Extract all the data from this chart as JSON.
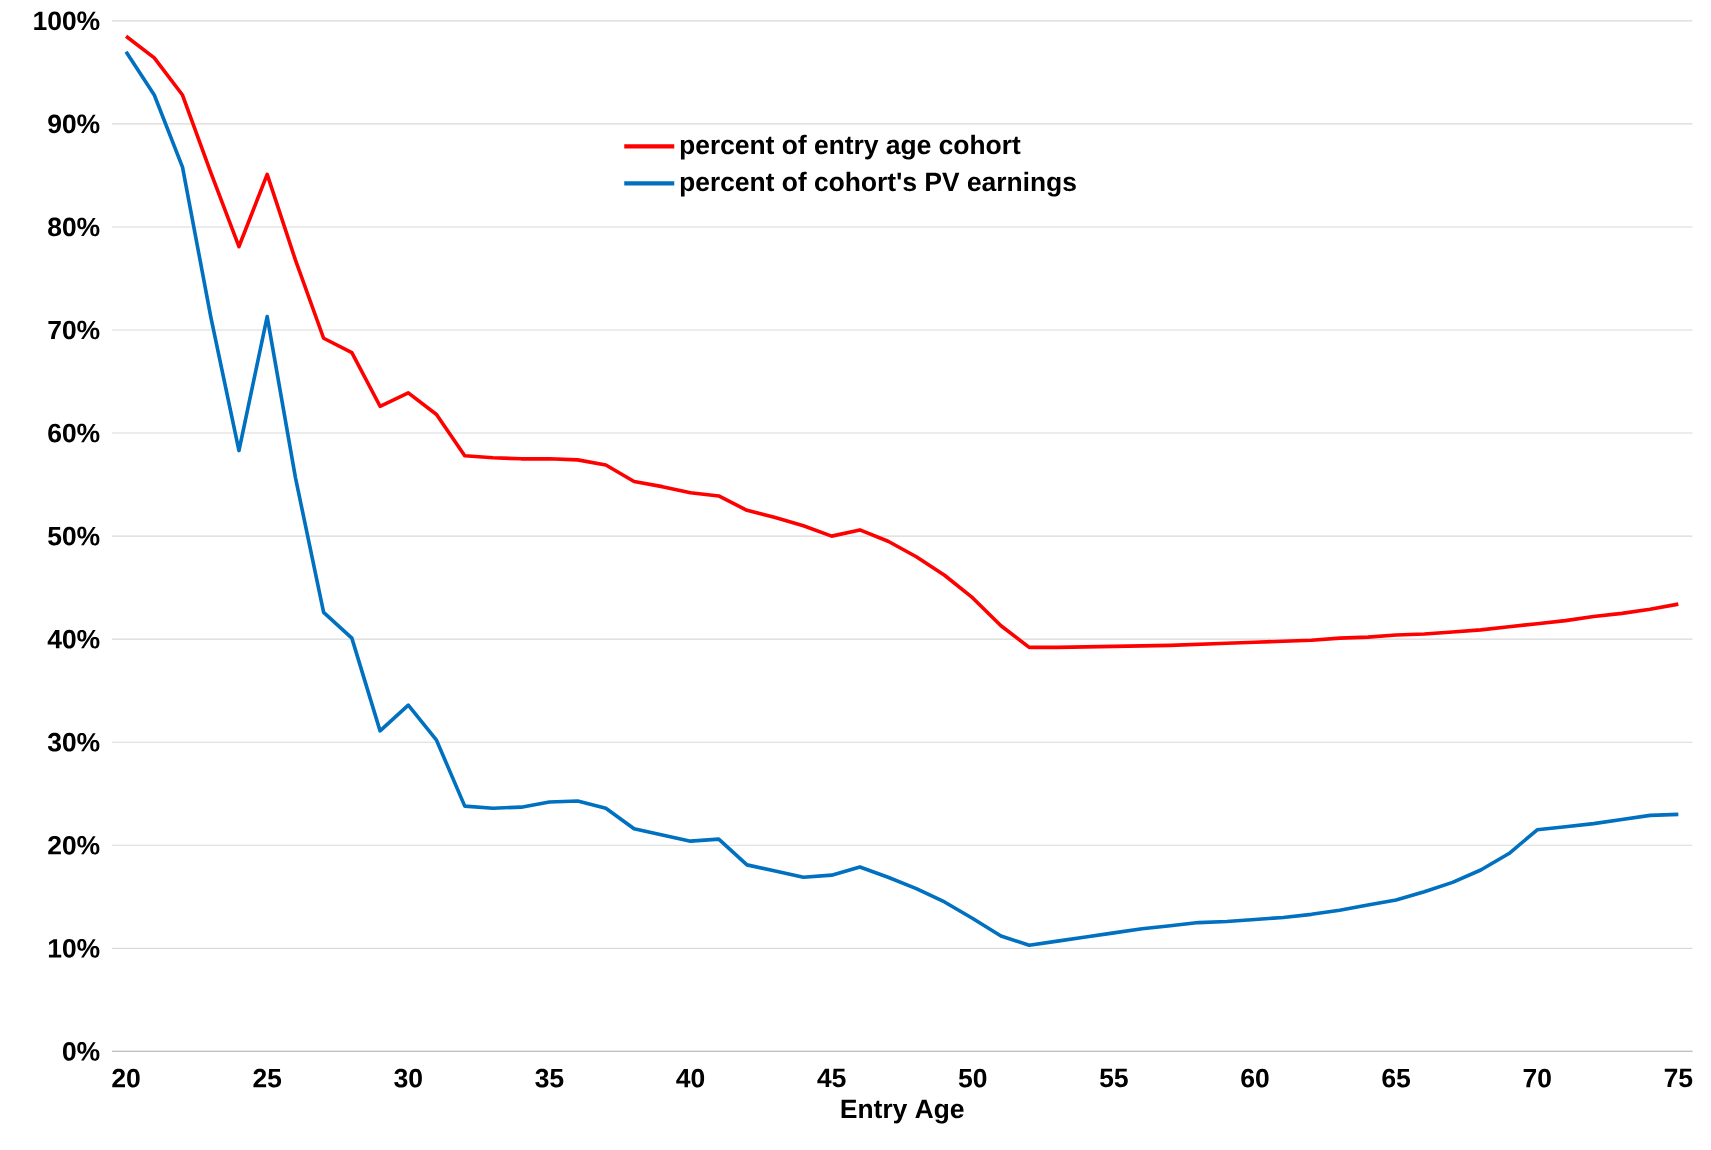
{
  "chart_data": {
    "type": "line",
    "xlabel": "Entry Age",
    "x": [
      20,
      21,
      22,
      23,
      24,
      25,
      26,
      27,
      28,
      29,
      30,
      31,
      32,
      33,
      34,
      35,
      36,
      37,
      38,
      39,
      40,
      41,
      42,
      43,
      44,
      45,
      46,
      47,
      48,
      49,
      50,
      51,
      52,
      53,
      54,
      55,
      56,
      57,
      58,
      59,
      60,
      61,
      62,
      63,
      64,
      65,
      66,
      67,
      68,
      69,
      70,
      71,
      72,
      73,
      74,
      75
    ],
    "series": [
      {
        "name": "percent of entry age cohort",
        "color": "#ff0000",
        "values": [
          98.5,
          96.4,
          92.8,
          85.3,
          78.1,
          85.1,
          76.8,
          69.2,
          67.8,
          62.6,
          63.9,
          61.8,
          57.8,
          57.6,
          57.5,
          57.5,
          57.4,
          56.9,
          55.3,
          54.8,
          54.2,
          53.9,
          52.5,
          51.8,
          51.0,
          50.0,
          50.6,
          49.5,
          48.0,
          46.2,
          44.0,
          41.3,
          39.2,
          39.2,
          39.25,
          39.3,
          39.35,
          39.4,
          39.5,
          39.6,
          39.7,
          39.8,
          39.9,
          40.1,
          40.2,
          40.4,
          40.5,
          40.7,
          40.9,
          41.2,
          41.5,
          41.8,
          42.2,
          42.5,
          42.9,
          43.4
        ]
      },
      {
        "name": "percent of cohort's PV earnings",
        "color": "#0070c0",
        "values": [
          97.0,
          92.8,
          85.8,
          71.3,
          58.3,
          71.3,
          55.7,
          42.6,
          40.1,
          31.1,
          33.6,
          30.2,
          23.8,
          23.6,
          23.7,
          24.2,
          24.3,
          23.6,
          21.6,
          21.0,
          20.4,
          20.6,
          18.1,
          17.5,
          16.9,
          17.1,
          17.9,
          16.9,
          15.8,
          14.5,
          12.9,
          11.2,
          10.3,
          10.7,
          11.1,
          11.5,
          11.9,
          12.2,
          12.5,
          12.6,
          12.8,
          13.0,
          13.3,
          13.7,
          14.2,
          14.7,
          15.5,
          16.4,
          17.6,
          19.2,
          21.5,
          21.8,
          22.1,
          22.5,
          22.9,
          23.0
        ]
      }
    ],
    "xlim": [
      19.5,
      75.5
    ],
    "xticks": [
      20,
      25,
      30,
      35,
      40,
      45,
      50,
      55,
      60,
      65,
      70,
      75
    ],
    "ylim": [
      0,
      100
    ],
    "yticks": [
      {
        "value": 0,
        "label": "0%"
      },
      {
        "value": 10,
        "label": "10%"
      },
      {
        "value": 20,
        "label": "20%"
      },
      {
        "value": 30,
        "label": "30%"
      },
      {
        "value": 40,
        "label": "40%"
      },
      {
        "value": 50,
        "label": "50%"
      },
      {
        "value": 60,
        "label": "60%"
      },
      {
        "value": 70,
        "label": "70%"
      },
      {
        "value": 80,
        "label": "80%"
      },
      {
        "value": 90,
        "label": "90%"
      },
      {
        "value": 100,
        "label": "100%"
      }
    ],
    "grid": "y",
    "legend": "top",
    "marker": "none",
    "line_style": "solid"
  }
}
